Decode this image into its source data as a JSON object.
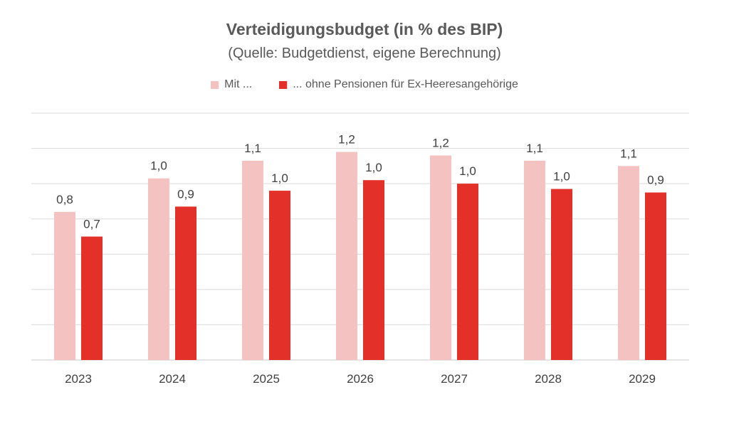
{
  "chart_data": {
    "type": "bar",
    "title": "Verteidigungsbudget (in % des BIP)",
    "subtitle": "(Quelle: Budgetdienst, eigene Berechnung)",
    "categories": [
      "2023",
      "2024",
      "2025",
      "2026",
      "2027",
      "2028",
      "2029"
    ],
    "series": [
      {
        "name": "Mit ...",
        "color": "#f4c2c0",
        "values": [
          0.84,
          1.03,
          1.13,
          1.18,
          1.16,
          1.13,
          1.1
        ],
        "labels": [
          "0,8",
          "1,0",
          "1,1",
          "1,2",
          "1,2",
          "1,1",
          "1,1"
        ]
      },
      {
        "name": "... ohne Pensionen für Ex-Heeresangehörige",
        "color": "#e3312a",
        "values": [
          0.7,
          0.87,
          0.96,
          1.02,
          1.0,
          0.97,
          0.95
        ],
        "labels": [
          "0,7",
          "0,9",
          "1,0",
          "1,0",
          "1,0",
          "1,0",
          "0,9"
        ]
      }
    ],
    "ylim": [
      0,
      1.4
    ],
    "grid": true,
    "legend_position": "top"
  }
}
